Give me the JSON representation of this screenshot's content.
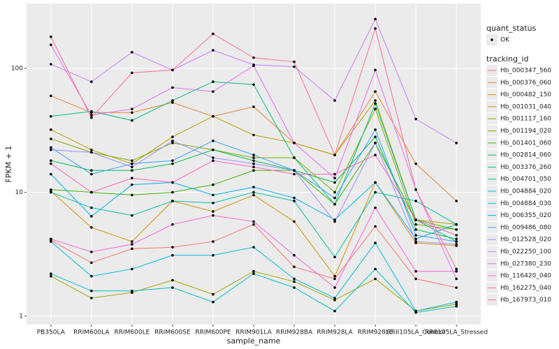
{
  "chart_data": {
    "type": "line",
    "x_label": "sample_name",
    "y_label": "FPKM + 1",
    "log_y": true,
    "grid": true,
    "ylim": [
      0.855,
      334
    ],
    "yticks": [
      1,
      10,
      100
    ],
    "categories": [
      "PB350LA",
      "RRIM600LA",
      "RRIM600LE",
      "RRIM600SE",
      "RRIM600PE",
      "RRIM901LA",
      "RRIM928BA",
      "RRIM928LA",
      "RRIM928LE",
      "RRII105LA_Control",
      "RRII105LA_Stressed"
    ],
    "point_legend_title": "quant_status",
    "point_legend_label": "OK",
    "point_color": "#000000",
    "legend_title": "tracking_id",
    "legend_position": "right",
    "series": [
      {
        "name": "Hb_000347_560",
        "color": "#F8766D",
        "values": [
          4.1,
          2.7,
          3.5,
          3.6,
          4,
          5.5,
          2.5,
          2,
          5.3,
          2,
          1.7
        ]
      },
      {
        "name": "Hb_000376_060",
        "color": "#EA8331",
        "values": [
          60,
          44,
          44,
          53,
          41,
          49,
          25,
          20,
          65,
          17,
          8.5
        ]
      },
      {
        "name": "Hb_000482_150",
        "color": "#D89000",
        "values": [
          10.2,
          5.2,
          4,
          8.5,
          7,
          9.5,
          5.8,
          2.1,
          12,
          3.9,
          3.7
        ]
      },
      {
        "name": "Hb_001031_040",
        "color": "#C09B00",
        "values": [
          32,
          22,
          17,
          28,
          41,
          29,
          25,
          20,
          55,
          6,
          5.5
        ]
      },
      {
        "name": "Hb_001117_160",
        "color": "#A3A500",
        "values": [
          2.1,
          1.4,
          1.55,
          1.95,
          1.5,
          2.3,
          1.9,
          1.35,
          2.0,
          1.1,
          1.25
        ]
      },
      {
        "name": "Hb_001194_020",
        "color": "#7CAE00",
        "values": [
          27,
          21,
          18,
          25,
          22,
          19,
          19,
          10,
          47,
          5.5,
          5
        ]
      },
      {
        "name": "Hb_001401_060",
        "color": "#39B600",
        "values": [
          10.5,
          10,
          9.5,
          10,
          11.5,
          15,
          15,
          8,
          25,
          6,
          5
        ]
      },
      {
        "name": "Hb_002814_060",
        "color": "#00BB4E",
        "values": [
          18,
          15,
          15,
          17,
          22,
          18,
          15,
          12,
          28,
          5,
          4.2
        ]
      },
      {
        "name": "Hb_003376_260",
        "color": "#00BF7D",
        "values": [
          41,
          45,
          38,
          55,
          78,
          74,
          19,
          8,
          52,
          6,
          4
        ]
      },
      {
        "name": "Hb_004701_050",
        "color": "#00C1A3",
        "values": [
          10,
          7.5,
          6.5,
          8.5,
          8.2,
          10,
          8.5,
          3,
          10,
          8.5,
          5.5
        ]
      },
      {
        "name": "Hb_004884_020",
        "color": "#00BFC4",
        "values": [
          2.2,
          1.6,
          1.6,
          1.7,
          1.3,
          2.2,
          1.7,
          1.1,
          2.4,
          1.07,
          1.2
        ]
      },
      {
        "name": "Hb_004884_030",
        "color": "#00BAE0",
        "values": [
          4,
          2.1,
          2.4,
          3.1,
          3.1,
          3.6,
          2,
          1.4,
          3.9,
          1.1,
          1.3
        ]
      },
      {
        "name": "Hb_006355_020",
        "color": "#00B0F6",
        "values": [
          14,
          6.4,
          11.5,
          12,
          9.5,
          11,
          9,
          6,
          12,
          4.2,
          5.5
        ]
      },
      {
        "name": "Hb_009486_080",
        "color": "#35A2FF",
        "values": [
          23,
          14,
          17,
          18,
          26,
          20,
          15,
          9,
          32,
          4.5,
          4
        ]
      },
      {
        "name": "Hb_012528_020",
        "color": "#9590FF",
        "values": [
          22,
          21,
          16,
          26,
          19,
          17,
          15,
          5.8,
          25,
          4,
          3.8
        ]
      },
      {
        "name": "Hb_022250_100",
        "color": "#C77CFF",
        "values": [
          108,
          78,
          135,
          97,
          140,
          107,
          103,
          55,
          250,
          39,
          25
        ]
      },
      {
        "name": "Hb_027380_230",
        "color": "#E76BF3",
        "values": [
          155,
          42,
          47,
          70,
          65,
          105,
          25,
          13,
          97,
          10.5,
          2
        ]
      },
      {
        "name": "Hb_116420_040",
        "color": "#FA62DB",
        "values": [
          4.2,
          3.3,
          3.8,
          5.5,
          6.5,
          5.8,
          3.1,
          1.7,
          7.5,
          2.3,
          2.3
        ]
      },
      {
        "name": "Hb_162275_040",
        "color": "#FF62BC",
        "values": [
          17,
          10,
          13,
          12,
          18,
          16,
          14,
          14,
          20,
          6,
          4.5
        ]
      },
      {
        "name": "Hb_167973_010",
        "color": "#FF6C91",
        "values": [
          180,
          40,
          92,
          97,
          190,
          122,
          113,
          20,
          210,
          10.5,
          2.4
        ]
      }
    ]
  }
}
